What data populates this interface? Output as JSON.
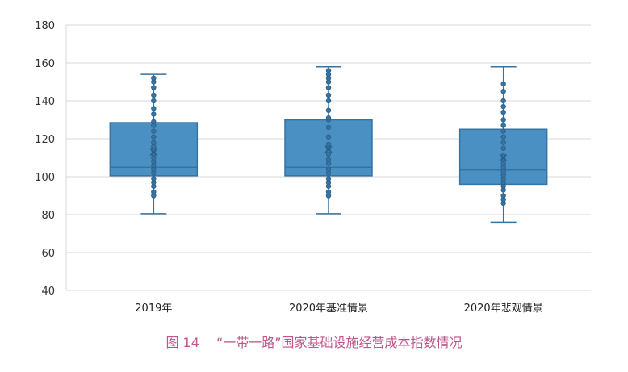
{
  "chart_data": {
    "type": "box",
    "title": "",
    "xlabel": "",
    "ylabel": "",
    "ylim": [
      40,
      180
    ],
    "yticks": [
      "40",
      "60",
      "80",
      "100",
      "120",
      "140",
      "160",
      "180"
    ],
    "grid": true,
    "colors": {
      "box": "#4a90c2",
      "edge": "#3573a3",
      "point": "#3573a3",
      "grid": "#d9d9d9"
    },
    "categories": [
      "2019年",
      "2020年基准情景",
      "2020年悲观情景"
    ],
    "boxes": [
      {
        "min": 80.5,
        "q1": 100.5,
        "median": 105,
        "q3": 128.5,
        "max": 154,
        "mean": 113,
        "points": [
          90,
          92,
          95,
          97,
          99,
          102,
          104,
          106,
          108,
          110,
          112,
          114,
          116,
          118,
          121,
          124,
          127,
          129,
          133,
          136,
          140,
          143,
          147,
          150,
          152
        ]
      },
      {
        "min": 80.5,
        "q1": 100.5,
        "median": 105,
        "q3": 130,
        "max": 158,
        "mean": 114.5,
        "points": [
          90,
          92,
          95,
          97,
          99,
          102,
          104,
          107,
          109,
          112,
          115,
          117,
          121,
          126,
          130,
          131,
          135,
          140,
          143,
          147,
          150,
          152,
          154,
          156
        ]
      },
      {
        "min": 76,
        "q1": 96,
        "median": 103.5,
        "q3": 125,
        "max": 158,
        "mean": 110,
        "points": [
          86,
          88,
          90,
          93,
          95,
          97,
          99,
          101,
          103,
          105,
          107,
          109,
          111,
          115,
          118,
          121,
          124,
          127,
          130,
          134,
          137,
          140,
          145,
          149
        ]
      }
    ]
  },
  "caption": "图 14　 “一带一路”国家基础设施经营成本指数情况"
}
